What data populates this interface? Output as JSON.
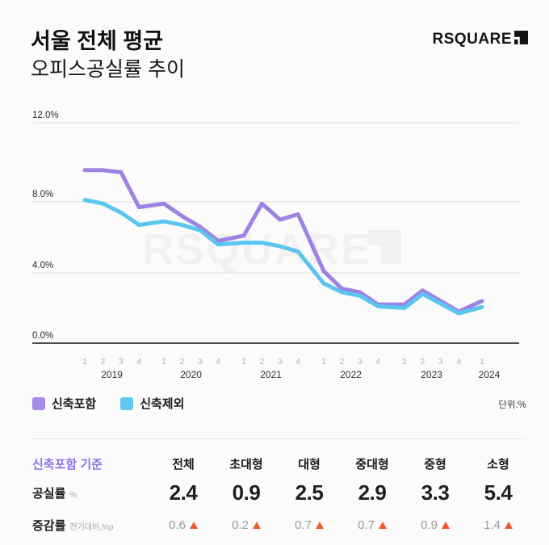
{
  "header": {
    "title_line1": "서울 전체 평균",
    "title_line2": "오피스공실률 추이",
    "logo_text": "RSQUARE"
  },
  "chart_data": {
    "type": "line",
    "title": "서울 전체 평균 오피스공실률 추이",
    "unit_note": "단위:%",
    "watermark": "RSQUARE",
    "grid": true,
    "legend_position": "bottom-left",
    "ylim": [
      0,
      12
    ],
    "y_axis": {
      "tick_labels": [
        "12.0%",
        "8.0%",
        "4.0%",
        "0.0%"
      ],
      "tick_values": [
        12,
        8,
        4,
        0
      ]
    },
    "x_groups": [
      {
        "year": "2019",
        "quarters": [
          "1",
          "2",
          "3",
          "4"
        ]
      },
      {
        "year": "2020",
        "quarters": [
          "1",
          "2",
          "3",
          "4"
        ]
      },
      {
        "year": "2021",
        "quarters": [
          "1",
          "2",
          "3",
          "4"
        ]
      },
      {
        "year": "2022",
        "quarters": [
          "1",
          "2",
          "3",
          "4"
        ]
      },
      {
        "year": "2023",
        "quarters": [
          "1",
          "2",
          "3",
          "4"
        ]
      },
      {
        "year": "2024",
        "quarters": [
          "1"
        ]
      }
    ],
    "series": [
      {
        "name": "신축포함",
        "color": "#9d82e3",
        "values": [
          9.6,
          9.6,
          9.5,
          7.7,
          7.9,
          7.2,
          6.6,
          5.8,
          6.1,
          7.9,
          7.0,
          7.3,
          4.1,
          3.1,
          2.9,
          2.2,
          2.2,
          3.0,
          2.4,
          1.8,
          2.4
        ]
      },
      {
        "name": "신축제외",
        "color": "#5bc5ef",
        "values": [
          8.1,
          7.9,
          7.4,
          6.7,
          6.9,
          6.7,
          6.4,
          5.6,
          5.7,
          5.7,
          5.5,
          5.2,
          3.4,
          2.9,
          2.7,
          2.1,
          2.0,
          2.8,
          2.25,
          1.7,
          2.05
        ]
      }
    ]
  },
  "legend": {
    "items": [
      {
        "label": "신축포함",
        "color": "#a78bea"
      },
      {
        "label": "신축제외",
        "color": "#62c8f2"
      }
    ],
    "unit_note": "단위:%"
  },
  "table": {
    "basis_label": "신축포함 기준",
    "columns": [
      "전체",
      "초대형",
      "대형",
      "중대형",
      "중형",
      "소형"
    ],
    "vacancy_row": {
      "label": "공실률",
      "sub_label": "%",
      "values": [
        "2.4",
        "0.9",
        "2.5",
        "2.9",
        "3.3",
        "5.4"
      ]
    },
    "change_row": {
      "label": "증감률",
      "sub_label": "전기대비,%p",
      "values": [
        "0.6",
        "0.2",
        "0.7",
        "0.7",
        "0.9",
        "1.4"
      ],
      "direction": "up"
    }
  },
  "colors": {
    "background": "#fbfbfb",
    "gridline": "#dedede",
    "zero_line": "#4d4d4d",
    "quarter_tick": "#b3b3b3",
    "year_label": "#333333",
    "watermark": "#f1f1f1",
    "series_including_new": "#9d82e3",
    "series_excluding_new": "#5bc5ef",
    "basis_label": "#8d6fe4",
    "triangle_up": "#f15a29"
  }
}
